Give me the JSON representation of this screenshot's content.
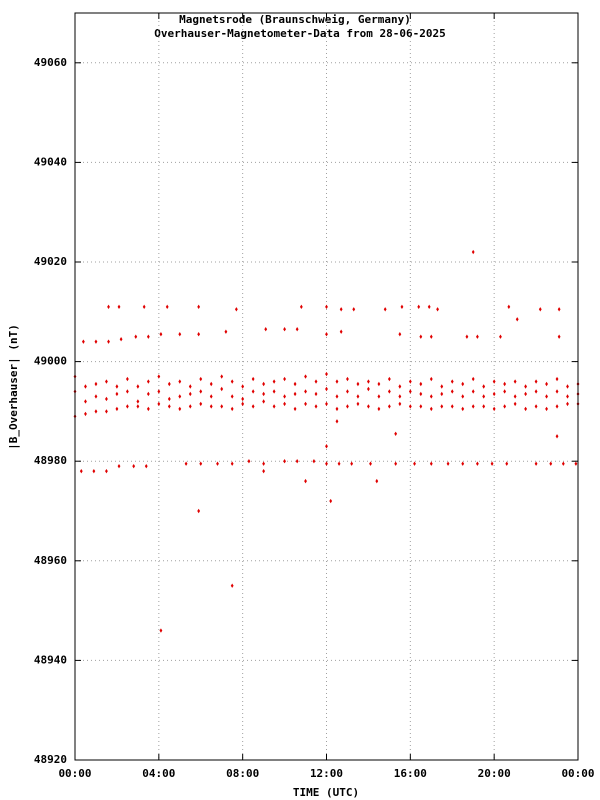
{
  "chart_data": {
    "type": "scatter",
    "title": "Magnetsrode (Braunschweig, Germany)",
    "subtitle": "Overhauser-Magnetometer-Data from 28-06-2025",
    "x_label": "TIME (UTC)",
    "y_label": "|B_Overhauser| (nT)",
    "xlim": [
      0,
      24
    ],
    "ylim": [
      48920,
      49070
    ],
    "xticks": [
      {
        "value": 0,
        "label": "00:00"
      },
      {
        "value": 4,
        "label": "04:00"
      },
      {
        "value": 8,
        "label": "08:00"
      },
      {
        "value": 12,
        "label": "12:00"
      },
      {
        "value": 16,
        "label": "16:00"
      },
      {
        "value": 20,
        "label": "20:00"
      },
      {
        "value": 24,
        "label": "00:00"
      }
    ],
    "yticks": [
      48920,
      48940,
      48960,
      48980,
      49000,
      49020,
      49040,
      49060
    ],
    "grid": true,
    "series": [
      {
        "color": "#e00000",
        "x": [
          0,
          0,
          0,
          0.5,
          0.5,
          0.5,
          1,
          1,
          1,
          1.5,
          1.5,
          1.5,
          2,
          2,
          2,
          2.5,
          2.5,
          2.5,
          3,
          3,
          3,
          3.5,
          3.5,
          3.5,
          4,
          4,
          4,
          4.5,
          4.5,
          4.5,
          5,
          5,
          5,
          5.5,
          5.5,
          5.5,
          6,
          6,
          6,
          6.5,
          6.5,
          6.5,
          7,
          7,
          7,
          7.5,
          7.5,
          7.5,
          8,
          8,
          8,
          8.5,
          8.5,
          8.5,
          9,
          9,
          9,
          9.5,
          9.5,
          9.5,
          10,
          10,
          10,
          10.5,
          10.5,
          10.5,
          11,
          11,
          11,
          11.5,
          11.5,
          11.5,
          12,
          12,
          12,
          12.5,
          12.5,
          12.5,
          13,
          13,
          13,
          13.5,
          13.5,
          13.5,
          14,
          14,
          14,
          14.5,
          14.5,
          14.5,
          15,
          15,
          15,
          15.5,
          15.5,
          15.5,
          16,
          16,
          16,
          16.5,
          16.5,
          16.5,
          17,
          17,
          17,
          17.5,
          17.5,
          17.5,
          18,
          18,
          18,
          18.5,
          18.5,
          18.5,
          19,
          19,
          19,
          19.5,
          19.5,
          19.5,
          20,
          20,
          20,
          20.5,
          20.5,
          20.5,
          21,
          21,
          21,
          21.5,
          21.5,
          21.5,
          22,
          22,
          22,
          22.5,
          22.5,
          22.5,
          23,
          23,
          23,
          23.5,
          23.5,
          23.5,
          24,
          24,
          24,
          1.6,
          2.1,
          3.3,
          4.4,
          5.9,
          7.7,
          10.8,
          12.0,
          12.7,
          13.3,
          14.8,
          15.6,
          16.4,
          16.9,
          17.3,
          20.7,
          22.2,
          23.1,
          21.1,
          0.4,
          1.0,
          1.6,
          2.2,
          2.9,
          3.5,
          4.1,
          5.0,
          5.9,
          7.2,
          9.1,
          10.0,
          10.6,
          12.7,
          12.0,
          15.5,
          16.5,
          17.0,
          18.7,
          19.2,
          20.3,
          23.1,
          0.3,
          0.9,
          1.5,
          2.1,
          2.8,
          3.4,
          5.3,
          6.0,
          6.8,
          7.5,
          8.3,
          9.0,
          10.0,
          10.6,
          11.4,
          12.0,
          12.6,
          13.2,
          14.1,
          15.3,
          16.2,
          17.0,
          17.8,
          18.5,
          19.2,
          19.9,
          20.6,
          22.0,
          22.7,
          23.3,
          23.9,
          19.0,
          4.1,
          7.5,
          5.9,
          12.2,
          14.4,
          11.0,
          15.3,
          23.0,
          12.5,
          12.0,
          9.0
        ],
        "values": [
          48997,
          48994,
          48989,
          48995,
          48992,
          48989.5,
          48995.5,
          48993,
          48990,
          48996,
          48992.5,
          48990,
          48995,
          48993.5,
          48990.5,
          48996.5,
          48994,
          48991,
          48995,
          48992,
          48991,
          48996,
          48993.5,
          48990.5,
          48997,
          48994,
          48991.5,
          48995.5,
          48992.5,
          48991,
          48996,
          48993,
          48990.5,
          48995,
          48993.5,
          48991,
          48996.5,
          48994,
          48991.5,
          48995.5,
          48993,
          48991,
          48997,
          48994.5,
          48991,
          48996,
          48993,
          48990.5,
          48995,
          48992.5,
          48991.5,
          48996.5,
          48994,
          48991,
          48995.5,
          48993.5,
          48992,
          48996,
          48994,
          48991,
          48996.5,
          48993,
          48991.5,
          48995.5,
          48993.5,
          48990.5,
          48997,
          48994,
          48991.5,
          48996,
          48993.5,
          48991,
          48997.5,
          48994.5,
          48991.5,
          48996,
          48993,
          48990.5,
          48996.5,
          48994,
          48991,
          48995.5,
          48993,
          48991.5,
          48996,
          48994.5,
          48991,
          48995.5,
          48993,
          48990.5,
          48996.5,
          48994,
          48991,
          48995,
          48993,
          48991.5,
          48996,
          48994,
          48991,
          48995.5,
          48993.5,
          48991,
          48996.5,
          48993,
          48990.5,
          48995,
          48993.5,
          48991,
          48996,
          48994,
          48991,
          48995.5,
          48993,
          48990.5,
          48996.5,
          48994,
          48991,
          48995,
          48993,
          48991,
          48996,
          48993.5,
          48990.5,
          48995.5,
          48994,
          48991,
          48996,
          48993,
          48991.5,
          48995,
          48993.5,
          48990.5,
          48996,
          48994,
          48991,
          48995.5,
          48993,
          48990.5,
          48996.5,
          48994,
          48991,
          48995,
          48993,
          48991.5,
          48995.5,
          48993.5,
          48991.5,
          49011,
          49011,
          49011,
          49011,
          49011,
          49010.5,
          49011,
          49011,
          49010.5,
          49010.5,
          49010.5,
          49011,
          49011,
          49011,
          49010.5,
          49011,
          49010.5,
          49010.5,
          49008.5,
          49004,
          49004,
          49004,
          49004.5,
          49005,
          49005,
          49005.5,
          49005.5,
          49005.5,
          49006,
          49006.5,
          49006.5,
          49006.5,
          49006,
          49005.5,
          49005.5,
          49005,
          49005,
          49005,
          49005,
          49005,
          49005,
          48978,
          48978,
          48978,
          48979,
          48979,
          48979,
          48979.5,
          48979.5,
          48979.5,
          48979.5,
          48980,
          48979.5,
          48980,
          48980,
          48980,
          48979.5,
          48979.5,
          48979.5,
          48979.5,
          48979.5,
          48979.5,
          48979.5,
          48979.5,
          48979.5,
          48979.5,
          48979.5,
          48979.5,
          48979.5,
          48979.5,
          48979.5,
          48979.5,
          49022,
          48946,
          48955,
          48970,
          48972,
          48976,
          48976,
          48985.5,
          48985,
          48988,
          48983,
          48978
        ]
      }
    ]
  }
}
